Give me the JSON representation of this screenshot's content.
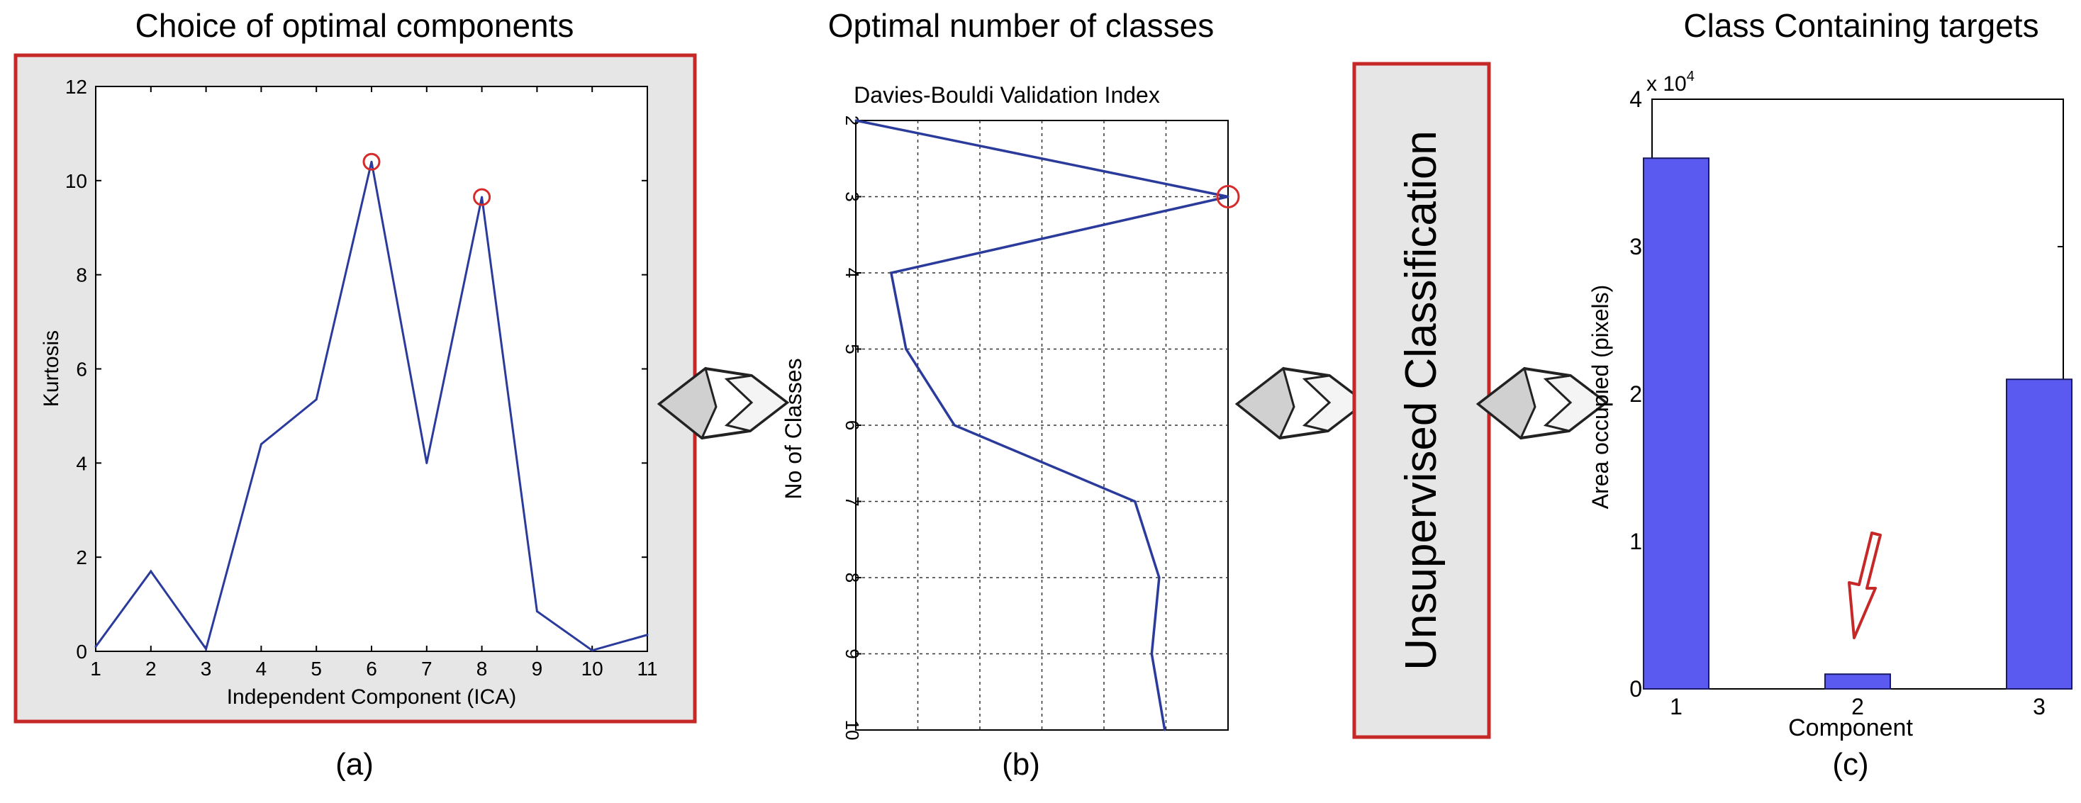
{
  "panel_a": {
    "heading": "Choice of optimal components",
    "caption": "(a)"
  },
  "panel_b": {
    "heading": "Optimal number of classes",
    "caption": "(b)"
  },
  "middle_box": {
    "label": "Unsupervised Classification"
  },
  "panel_c": {
    "heading": "Class Containing targets",
    "caption": "(c)"
  },
  "colors": {
    "line": "#2b3b9c",
    "bar_fill": "#5a5af0",
    "bar_stroke": "#1a1a66",
    "marker": "#d62b2b",
    "frame_red": "#c62828",
    "panel_bg": "#e6e6e6"
  },
  "chart_data": [
    {
      "type": "line",
      "title": "",
      "xlabel": "Independent Component (ICA)",
      "ylabel": "Kurtosis",
      "xlim": [
        1,
        11
      ],
      "ylim": [
        0,
        12
      ],
      "x_ticks": [
        1,
        2,
        3,
        4,
        5,
        6,
        7,
        8,
        9,
        10,
        11
      ],
      "y_ticks": [
        0,
        2,
        4,
        6,
        8,
        10,
        12
      ],
      "grid": false,
      "series": [
        {
          "x": [
            1,
            2,
            3,
            4,
            5,
            6,
            7,
            8,
            9,
            10,
            11
          ],
          "y": [
            0.1,
            1.7,
            0.05,
            4.4,
            5.35,
            10.4,
            4.0,
            9.65,
            0.85,
            0.02,
            0.35
          ]
        }
      ],
      "highlighted_points": [
        {
          "x": 6,
          "y": 10.4
        },
        {
          "x": 8,
          "y": 9.65
        }
      ]
    },
    {
      "type": "line",
      "title": "Davies-Bouldi Validation Index",
      "xlabel": "",
      "ylabel": "No of Classes",
      "orientation": "rotated",
      "class_ticks": [
        2,
        3,
        4,
        5,
        6,
        7,
        8,
        9,
        10
      ],
      "index_range": [
        0,
        1
      ],
      "grid": true,
      "series": [
        {
          "classes": [
            2,
            3,
            4,
            5,
            6,
            7,
            8,
            9,
            10
          ],
          "index": [
            0.0,
            1.0,
            0.095,
            0.135,
            0.265,
            0.75,
            0.815,
            0.795,
            0.83
          ]
        }
      ],
      "highlighted_points": [
        {
          "classes": 3,
          "index": 1.0
        }
      ]
    },
    {
      "type": "bar",
      "title": "",
      "xlabel": "Component",
      "ylabel": "Area occupied (pixels)",
      "y_multiplier": "x 10",
      "y_multiplier_exponent": "4",
      "categories": [
        "1",
        "2",
        "3"
      ],
      "values": [
        36000,
        1000,
        21000
      ],
      "ylim": [
        0,
        40000
      ],
      "y_ticks": [
        0,
        1,
        2,
        3,
        4
      ],
      "grid": false,
      "annotation": "arrow pointing at category 2"
    }
  ]
}
